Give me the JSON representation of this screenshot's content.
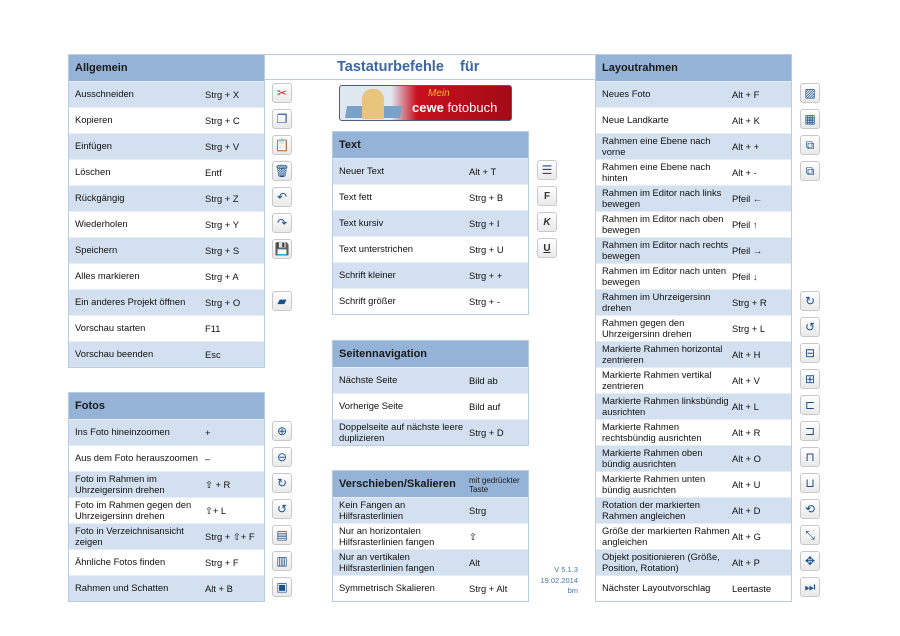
{
  "title": "Tastaturbefehle    für",
  "logo": {
    "text_top": "Mein",
    "text_brand": "cewe",
    "text_rest": "fotobuch"
  },
  "version": {
    "line1": "V 5.1.3",
    "line2": "19.02.2014",
    "line3": "bm"
  },
  "colors": {
    "header": "#95b3d7",
    "row_alt": "#d3e0ef",
    "title": "#3b67a3"
  },
  "tables": {
    "allgemein": {
      "title": "Allgemein",
      "rows": [
        {
          "action": "Ausschneiden",
          "key": "Strg + X",
          "icon": "scissors-icon"
        },
        {
          "action": "Kopieren",
          "key": "Strg + C",
          "icon": "copy-icon"
        },
        {
          "action": "Einfügen",
          "key": "Strg + V",
          "icon": "paste-icon"
        },
        {
          "action": "Löschen",
          "key": "Entf",
          "icon": "trash-icon"
        },
        {
          "action": "Rückgängig",
          "key": "Strg + Z",
          "icon": "undo-icon"
        },
        {
          "action": "Wiederholen",
          "key": "Strg + Y",
          "icon": "redo-icon"
        },
        {
          "action": "Speichern",
          "key": "Strg + S",
          "icon": "save-icon"
        },
        {
          "action": "Alles markieren",
          "key": "Strg + A",
          "icon": ""
        },
        {
          "action": "Ein anderes Projekt öffnen",
          "key": "Strg + O",
          "icon": "open-project-icon"
        },
        {
          "action": "Vorschau starten",
          "key": "F11",
          "icon": ""
        },
        {
          "action": "Vorschau beenden",
          "key": "Esc",
          "icon": ""
        }
      ]
    },
    "fotos": {
      "title": "Fotos",
      "rows": [
        {
          "action": "Ins Foto hineinzoomen",
          "key": "+",
          "icon": "zoom-in-icon"
        },
        {
          "action": "Aus dem Foto herauszoomen",
          "key": "–",
          "icon": "zoom-out-icon"
        },
        {
          "action": "Foto im Rahmen im Uhrzeigersinn drehen",
          "key": "⇧ + R",
          "icon": "rotate-cw-icon"
        },
        {
          "action": "Foto im Rahmen gegen den Uhrzeigersinn drehen",
          "key": "⇧+ L",
          "icon": "rotate-ccw-icon"
        },
        {
          "action": "Foto in Verzeichnisansicht zeigen",
          "key": "Strg + ⇧+ F",
          "icon": "show-in-folder-icon"
        },
        {
          "action": "Ähnliche Fotos finden",
          "key": "Strg + F",
          "icon": "similar-photos-icon"
        },
        {
          "action": "Rahmen und Schatten",
          "key": "Alt + B",
          "icon": "frame-shadow-icon"
        }
      ]
    },
    "text": {
      "title": "Text",
      "rows": [
        {
          "action": "Neuer Text",
          "key": "Alt + T",
          "icon": "new-text-icon"
        },
        {
          "action": "Text fett",
          "key": "Strg + B",
          "icon": "bold-icon"
        },
        {
          "action": "Text kursiv",
          "key": "Strg + I",
          "icon": "italic-icon"
        },
        {
          "action": "Text unterstrichen",
          "key": "Strg + U",
          "icon": "underline-icon"
        },
        {
          "action": "Schrift kleiner",
          "key": "Strg + +",
          "icon": ""
        },
        {
          "action": "Schrift größer",
          "key": "Strg + -",
          "icon": ""
        }
      ]
    },
    "seiten": {
      "title": "Seitennavigation",
      "rows": [
        {
          "action": "Nächste Seite",
          "key": "Bild ab",
          "icon": ""
        },
        {
          "action": "Vorherige Seite",
          "key": "Bild auf",
          "icon": ""
        },
        {
          "action": "Doppelseite auf nächste leere duplizieren",
          "key": "Strg + D",
          "icon": ""
        }
      ]
    },
    "verschieben": {
      "title": "Verschieben/Skalieren",
      "subtitle": "mit gedrückter Taste",
      "rows": [
        {
          "action": "Kein Fangen an Hilfsrasterlinien",
          "key": "Strg",
          "icon": ""
        },
        {
          "action": "Nur an horizontalen Hilfsrasterlinien fangen",
          "key": "⇧",
          "icon": ""
        },
        {
          "action": "Nur an vertikalen Hilfsrasterlinien fangen",
          "key": "Alt",
          "icon": ""
        },
        {
          "action": "Symmetrisch Skalieren",
          "key": "Strg + Alt",
          "icon": ""
        }
      ]
    },
    "layout": {
      "title": "Layoutrahmen",
      "rows": [
        {
          "action": "Neues Foto",
          "key": "Alt + F",
          "icon": "new-photo-icon"
        },
        {
          "action": "Neue Landkarte",
          "key": "Alt + K",
          "icon": "new-map-icon"
        },
        {
          "action": "Rahmen eine Ebene nach vorne",
          "key": "Alt + +",
          "icon": "bring-forward-icon"
        },
        {
          "action": "Rahmen eine Ebene nach hinten",
          "key": "Alt + -",
          "icon": "send-backward-icon"
        },
        {
          "action": "Rahmen im Editor nach links bewegen",
          "key": "Pfeil ←",
          "icon": ""
        },
        {
          "action": "Rahmen im Editor nach oben bewegen",
          "key": "Pfeil ↑",
          "icon": ""
        },
        {
          "action": "Rahmen im Editor nach rechts bewegen",
          "key": "Pfeil →",
          "icon": ""
        },
        {
          "action": "Rahmen im Editor nach unten bewegen",
          "key": "Pfeil ↓",
          "icon": ""
        },
        {
          "action": "Rahmen im Uhrzeigersinn drehen",
          "key": "Strg + R",
          "icon": "rotate-cw-icon"
        },
        {
          "action": "Rahmen gegen den Uhrzeigersinn drehen",
          "key": "Strg + L",
          "icon": "rotate-ccw-icon"
        },
        {
          "action": "Markierte Rahmen horizontal zentrieren",
          "key": "Alt + H",
          "icon": "center-horizontal-icon"
        },
        {
          "action": "Markierte Rahmen vertikal zentrieren",
          "key": "Alt + V",
          "icon": "center-vertical-icon"
        },
        {
          "action": "Markierte Rahmen linksbündig ausrichten",
          "key": "Alt + L",
          "icon": "align-left-icon"
        },
        {
          "action": "Markierte Rahmen rechtsbündig ausrichten",
          "key": "Alt + R",
          "icon": "align-right-icon"
        },
        {
          "action": "Markierte Rahmen oben bündig ausrichten",
          "key": "Alt + O",
          "icon": "align-top-icon"
        },
        {
          "action": "Markierte Rahmen unten bündig ausrichten",
          "key": "Alt + U",
          "icon": "align-bottom-icon"
        },
        {
          "action": "Rotation der markierten Rahmen angleichen",
          "key": "Alt + D",
          "icon": "match-rotation-icon"
        },
        {
          "action": "Größe der markierten Rahmen angleichen",
          "key": "Alt + G",
          "icon": "match-size-icon"
        },
        {
          "action": "Objekt positionieren (Größe, Position, Rotation)",
          "key": "Alt + P",
          "icon": "position-object-icon"
        },
        {
          "action": "Nächster Layoutvorschlag",
          "key": "Leertaste",
          "icon": "next-layout-icon"
        }
      ]
    }
  }
}
